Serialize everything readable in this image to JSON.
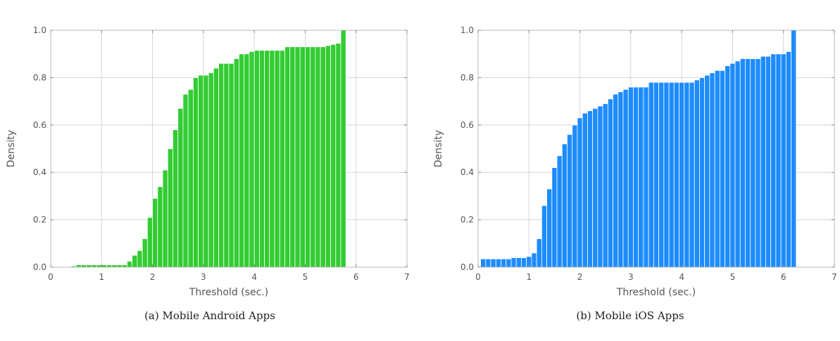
{
  "captions": [
    "(a) Mobile Android Apps",
    "(b) Mobile iOS Apps"
  ],
  "chart_data": [
    {
      "type": "bar",
      "subtype": "cumulative-histogram",
      "title": "",
      "xlabel": "Threshold (sec.)",
      "ylabel": "Density",
      "xlim": [
        0,
        7
      ],
      "ylim": [
        0,
        1
      ],
      "xticks": [
        0,
        1,
        2,
        3,
        4,
        5,
        6,
        7
      ],
      "yticks": [
        0.0,
        0.2,
        0.4,
        0.6,
        0.8,
        1.0
      ],
      "grid": true,
      "color": "#33cc33",
      "bin_start": 0.4,
      "bin_width": 0.1,
      "values": [
        0.005,
        0.01,
        0.01,
        0.01,
        0.01,
        0.01,
        0.01,
        0.01,
        0.01,
        0.01,
        0.01,
        0.025,
        0.05,
        0.07,
        0.12,
        0.21,
        0.29,
        0.34,
        0.41,
        0.5,
        0.58,
        0.67,
        0.73,
        0.75,
        0.8,
        0.81,
        0.81,
        0.82,
        0.84,
        0.86,
        0.86,
        0.86,
        0.88,
        0.9,
        0.9,
        0.91,
        0.915,
        0.915,
        0.915,
        0.915,
        0.915,
        0.915,
        0.93,
        0.93,
        0.93,
        0.93,
        0.93,
        0.93,
        0.93,
        0.93,
        0.935,
        0.94,
        0.945,
        1.0
      ]
    },
    {
      "type": "bar",
      "subtype": "cumulative-histogram",
      "title": "",
      "xlabel": "Threshold (sec.)",
      "ylabel": "Density",
      "xlim": [
        0,
        7
      ],
      "ylim": [
        0,
        1
      ],
      "xticks": [
        0,
        1,
        2,
        3,
        4,
        5,
        6,
        7
      ],
      "yticks": [
        0.0,
        0.2,
        0.4,
        0.6,
        0.8,
        1.0
      ],
      "grid": true,
      "color": "#1e8cff",
      "bin_start": 0.05,
      "bin_width": 0.1,
      "values": [
        0.035,
        0.035,
        0.035,
        0.035,
        0.035,
        0.035,
        0.04,
        0.04,
        0.04,
        0.045,
        0.06,
        0.12,
        0.26,
        0.33,
        0.42,
        0.47,
        0.52,
        0.56,
        0.6,
        0.63,
        0.65,
        0.66,
        0.67,
        0.68,
        0.69,
        0.71,
        0.73,
        0.74,
        0.75,
        0.76,
        0.76,
        0.76,
        0.76,
        0.78,
        0.78,
        0.78,
        0.78,
        0.78,
        0.78,
        0.78,
        0.78,
        0.78,
        0.79,
        0.8,
        0.81,
        0.82,
        0.83,
        0.83,
        0.85,
        0.86,
        0.87,
        0.88,
        0.88,
        0.88,
        0.88,
        0.89,
        0.89,
        0.9,
        0.9,
        0.9,
        0.91,
        1.0
      ]
    }
  ]
}
